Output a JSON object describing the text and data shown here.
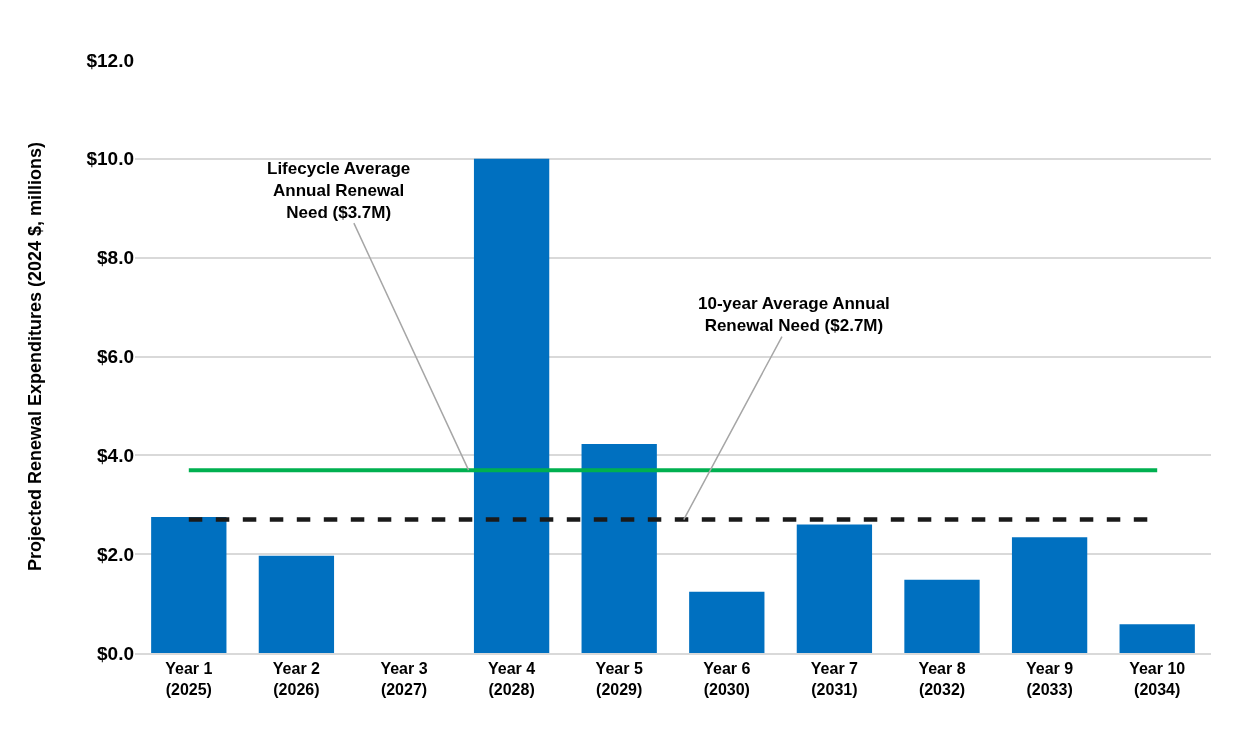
{
  "chart_data": {
    "type": "bar",
    "ylabel": "Projected Renewal Expenditures (2024 $, millions)",
    "categories": [
      "Year 1 (2025)",
      "Year 2 (2026)",
      "Year 3 (2027)",
      "Year 4 (2028)",
      "Year 5 (2029)",
      "Year 6 (2030)",
      "Year 7 (2031)",
      "Year 8 (2032)",
      "Year 9 (2033)",
      "Year 10 (2034)"
    ],
    "values": [
      2.75,
      1.97,
      0,
      10.0,
      4.23,
      1.24,
      2.6,
      1.48,
      2.34,
      0.58
    ],
    "color": "#0070c0",
    "ylim": [
      0,
      12
    ],
    "yticks": [
      {
        "value": 0,
        "label": "$0.0"
      },
      {
        "value": 2,
        "label": "$2.0"
      },
      {
        "value": 4,
        "label": "$4.0"
      },
      {
        "value": 6,
        "label": "$6.0"
      },
      {
        "value": 8,
        "label": "$8.0"
      },
      {
        "value": 10,
        "label": "$10.0"
      },
      {
        "value": 12,
        "label": "$12.0"
      }
    ],
    "grid": "y",
    "ref_lines": [
      {
        "axis": "y",
        "value": 3.7,
        "label": "Lifecycle Average Annual Renewal Need ($3.7M)",
        "color": "#00b050",
        "line_style": "solid"
      },
      {
        "axis": "y",
        "value": 2.7,
        "label": "10-year Average Annual Renewal Need ($2.7M)",
        "color": "#1a1a1a",
        "line_style": "dashed"
      }
    ]
  }
}
